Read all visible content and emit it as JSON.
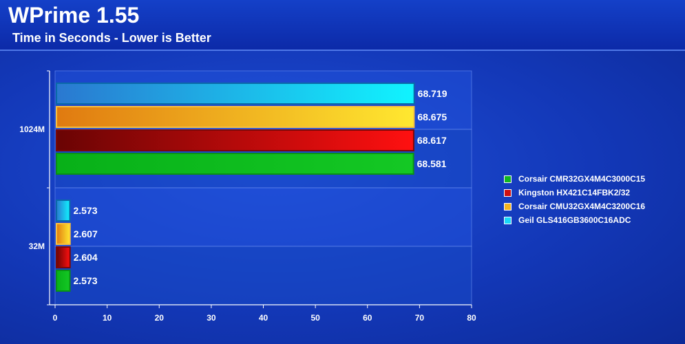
{
  "chart_data": {
    "type": "bar",
    "orientation": "horizontal",
    "title": "WPrime 1.55",
    "subtitle": "Time in Seconds - Lower is Better",
    "categories": [
      "1024M",
      "32M"
    ],
    "series": [
      {
        "name": "Geil GLS416GB3600C16ADC",
        "values": [
          68.719,
          2.573
        ],
        "color": "#18d8f8"
      },
      {
        "name": "Corsair CMU32GX4M4C3200C16",
        "values": [
          68.675,
          2.607
        ],
        "color": "#f4b420"
      },
      {
        "name": "Kingston HX421C14FBK2/32",
        "values": [
          68.617,
          2.604
        ],
        "color": "#d01010"
      },
      {
        "name": "Corsair CMR32GX4M4C3000C15",
        "values": [
          68.581,
          2.573
        ],
        "color": "#10b820"
      }
    ],
    "data_labels": [
      [
        "68.719",
        "68.675",
        "68.617",
        "68.581"
      ],
      [
        "2.573",
        "2.607",
        "2.604",
        "2.573"
      ]
    ],
    "x_ticks": [
      "0",
      "10",
      "20",
      "30",
      "40",
      "50",
      "60",
      "70",
      "80"
    ],
    "xlim": [
      0,
      80
    ],
    "legend": [
      "Corsair CMR32GX4M4C3000C15",
      "Kingston HX421C14FBK2/32",
      "Corsair CMU32GX4M4C3200C16",
      "Geil GLS416GB3600C16ADC"
    ],
    "legend_colors": [
      "#10b820",
      "#d01010",
      "#f4b420",
      "#18d8f8"
    ],
    "legend_position": "right",
    "grid": true
  }
}
